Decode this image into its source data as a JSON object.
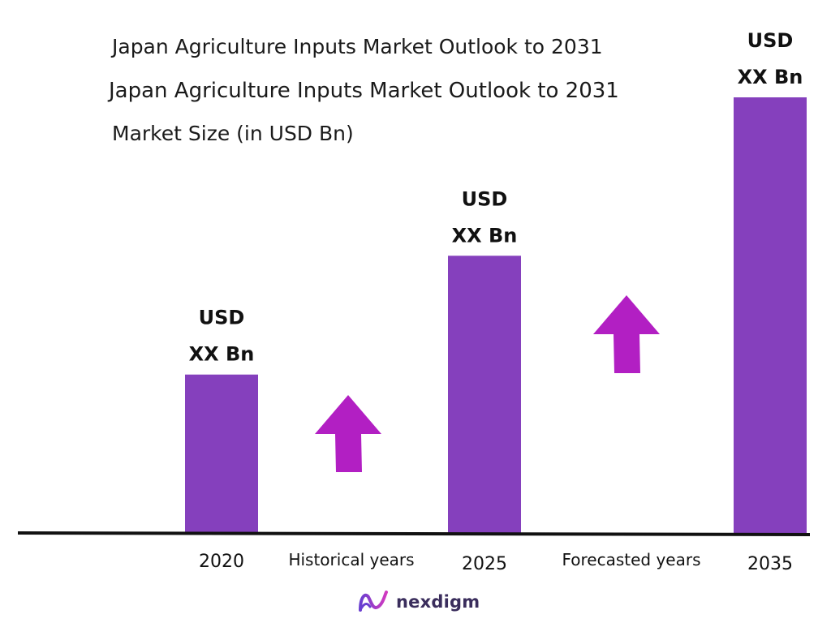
{
  "header": {
    "title_line1": "Japan Agriculture Inputs Market Outlook to 2031",
    "title_line2": "Japan Agriculture Inputs Market Outlook to 2031",
    "subtitle": "Market Size (in USD Bn)"
  },
  "colors": {
    "bar": "#8540bd",
    "arrow": "#b21fc3",
    "axis": "#111111"
  },
  "chart_data": {
    "type": "bar",
    "categories": [
      "2020",
      "2025",
      "2035"
    ],
    "values": [
      1.0,
      1.75,
      2.75
    ],
    "value_labels": [
      [
        "USD",
        "XX Bn"
      ],
      [
        "USD",
        "XX Bn"
      ],
      [
        "USD",
        "XX Bn"
      ]
    ],
    "period_labels": [
      "Historical years",
      "Forecasted years"
    ],
    "arrows": [
      "up-arrow-icon",
      "up-arrow-icon"
    ],
    "title": "Japan Agriculture Inputs Market Outlook to 2031",
    "ylabel": "Market Size (in USD Bn)",
    "ylim": [
      0,
      2.75
    ],
    "grid": false
  },
  "branding": {
    "logo_text": "nexdigm",
    "logo_icon": "nexdigm-logo-icon"
  }
}
